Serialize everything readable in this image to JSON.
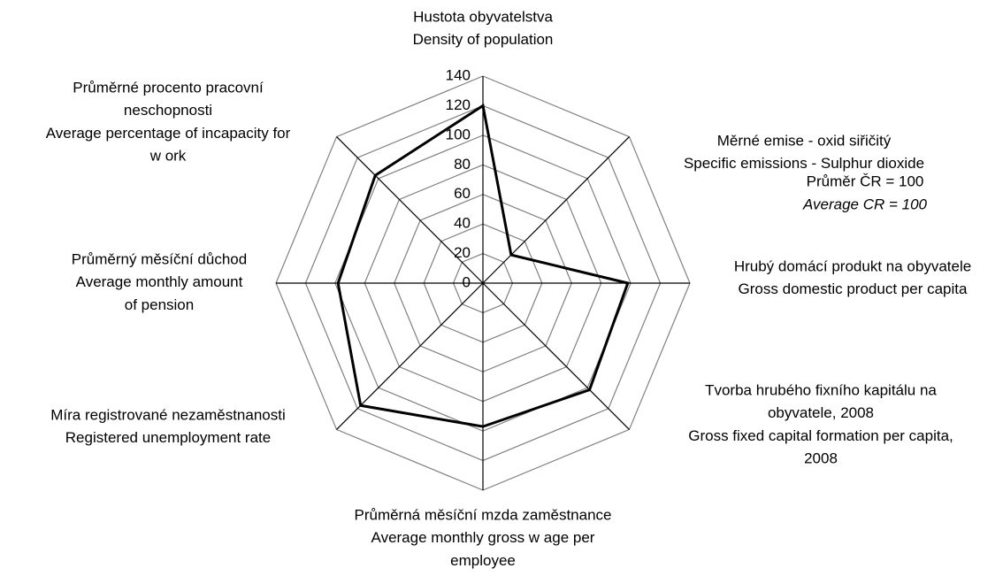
{
  "chart_data": {
    "type": "radar",
    "categories": [
      [
        "Hustota obyvatelstva",
        "Density of population"
      ],
      [
        "Měrné emise - oxid siřičitý",
        "Specific emissions  - Sulphur dioxide"
      ],
      [
        "Hrubý domácí produkt na obyvatele",
        "Gross domestic product per capita"
      ],
      [
        "Tvorba hrubého fixního kapitálu na",
        "obyvatele, 2008",
        "Gross fixed capital formation per capita,",
        "2008"
      ],
      [
        "Průměrná měsíční mzda zaměstnance",
        "Average monthly gross w age per",
        "employee"
      ],
      [
        "Míra registrované nezaměstnanosti",
        "Registered unemployment rate"
      ],
      [
        "Průměrný měsíční důchod",
        "Average monthly amount",
        "of pension"
      ],
      [
        "Průměrné procento pracovní",
        "neschopnosti",
        "Average percentage of incapacity for",
        "w ork"
      ]
    ],
    "values": [
      120,
      27,
      98,
      102,
      97,
      117,
      98,
      103
    ],
    "color": "#000000",
    "grid_color": "#808080",
    "ylim": [
      0,
      140
    ],
    "yticks": [
      0,
      20,
      40,
      60,
      80,
      100,
      120,
      140
    ],
    "annotations": [
      "Průměr  ČR = 100",
      "Average CR = 100"
    ]
  }
}
